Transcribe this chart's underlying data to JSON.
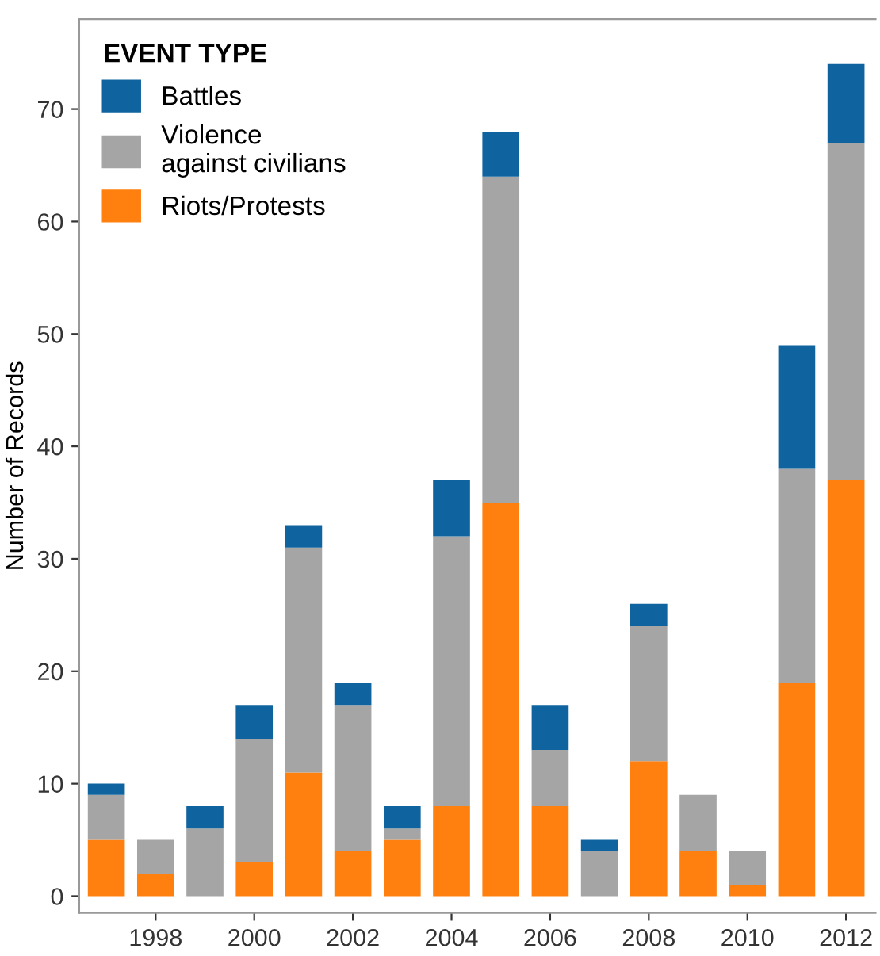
{
  "chart_data": {
    "type": "bar",
    "stacked": true,
    "ylabel": "Number of Records",
    "legend_title": "EVENT TYPE",
    "legend": "top left",
    "grid": false,
    "x": [
      1997,
      1998,
      1999,
      2000,
      2001,
      2002,
      2003,
      2004,
      2005,
      2006,
      2007,
      2008,
      2009,
      2010,
      2011,
      2012
    ],
    "xlim": [
      1996.45,
      2012.6
    ],
    "xticks": [
      1998,
      2000,
      2002,
      2004,
      2006,
      2008,
      2010,
      2012
    ],
    "ylim": [
      -1.5,
      78
    ],
    "yticks": [
      0,
      10,
      20,
      30,
      40,
      50,
      60,
      70
    ],
    "series": [
      {
        "name": "Riots/Protests",
        "color": "#ff800e",
        "values": [
          5,
          2,
          0,
          3,
          11,
          4,
          5,
          8,
          35,
          8,
          0,
          12,
          4,
          1,
          19,
          37
        ]
      },
      {
        "name": "Violence\nagainst civilians",
        "color": "#a5a5a5",
        "values": [
          4,
          3,
          6,
          11,
          20,
          13,
          1,
          24,
          29,
          5,
          4,
          12,
          5,
          3,
          19,
          30
        ]
      },
      {
        "name": "Battles",
        "color": "#0f64a0",
        "values": [
          1,
          0,
          2,
          3,
          2,
          2,
          2,
          5,
          4,
          4,
          1,
          2,
          0,
          0,
          11,
          7
        ]
      }
    ]
  }
}
